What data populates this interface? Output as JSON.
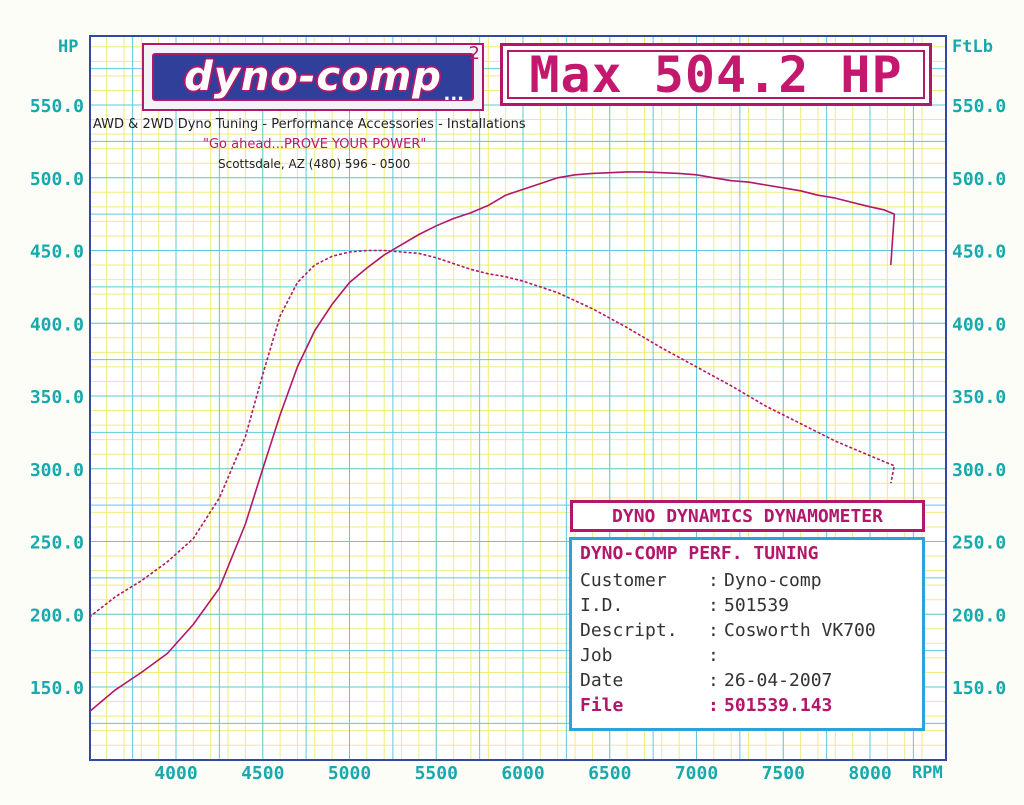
{
  "header": {
    "logo_text": "dyno-comp",
    "logo_superscript": "2",
    "logo_dots": "...",
    "max_label": "Max 504.2 HP",
    "tagline": "AWD & 2WD Dyno Tuning - Performance Accessories - Installations",
    "slogan": "\"Go ahead...PROVE YOUR POWER\"",
    "address": "Scottsdale, AZ (480) 596 - 0500"
  },
  "axes": {
    "left_unit": "HP",
    "right_unit": "FtLb",
    "x_unit": "RPM"
  },
  "colors": {
    "grid_cyan": "#5fc9d6",
    "grid_yellow": "#f2ec7e",
    "curve": "#b3176a",
    "axis_text": "#17a9ad",
    "frame": "#2f4aa0",
    "info_border": "#2aa3dd"
  },
  "dyno_header": "DYNO DYNAMICS DYNAMOMETER",
  "info": {
    "title": "DYNO-COMP PERF. TUNING",
    "rows": [
      {
        "key": "Customer",
        "sep": ":",
        "value": "Dyno-comp"
      },
      {
        "key": "I.D.",
        "sep": ":",
        "value": "501539"
      },
      {
        "key": "Descript.",
        "sep": ":",
        "value": "Cosworth VK700"
      },
      {
        "key": "Job",
        "sep": ":",
        "value": ""
      },
      {
        "key": "Date",
        "sep": ":",
        "value": "26-04-2007"
      }
    ],
    "file": {
      "key": "File",
      "sep": ":",
      "value": "501539.143"
    }
  },
  "chart_data": {
    "type": "line",
    "xlabel": "RPM",
    "ylabel_left": "HP",
    "ylabel_right": "FtLb",
    "xlim": [
      3500,
      8300
    ],
    "ylim": [
      100,
      595
    ],
    "x_ticks": [
      4000,
      4500,
      5000,
      5500,
      6000,
      6500,
      7000,
      7500,
      8000
    ],
    "y_ticks": [
      150.0,
      200.0,
      250.0,
      300.0,
      350.0,
      400.0,
      450.0,
      500.0,
      550.0
    ],
    "y_tick_labels": [
      "150.0",
      "200.0",
      "250.0",
      "300.0",
      "350.0",
      "400.0",
      "450.0",
      "500.0",
      "550.0"
    ],
    "grid": true,
    "series": [
      {
        "style": "solid",
        "x": [
          3500,
          3650,
          3800,
          3950,
          4100,
          4250,
          4400,
          4500,
          4600,
          4700,
          4800,
          4900,
          5000,
          5100,
          5200,
          5300,
          5400,
          5500,
          5600,
          5700,
          5800,
          5900,
          6000,
          6100,
          6200,
          6300,
          6400,
          6500,
          6600,
          6700,
          6800,
          6900,
          7000,
          7100,
          7200,
          7300,
          7400,
          7500,
          7600,
          7700,
          7800,
          7900,
          8000,
          8080,
          8140,
          8120
        ],
        "y": [
          133,
          148,
          160,
          173,
          193,
          218,
          262,
          300,
          337,
          370,
          395,
          413,
          428,
          438,
          447,
          454,
          461,
          467,
          472,
          476,
          481,
          488,
          492,
          496,
          500,
          502,
          503,
          503.5,
          504,
          504,
          503.5,
          503,
          502,
          500,
          498,
          497,
          495,
          493,
          491,
          488,
          486,
          483,
          480,
          478,
          475,
          440
        ]
      },
      {
        "style": "dashed",
        "x": [
          3500,
          3650,
          3800,
          3950,
          4100,
          4250,
          4400,
          4500,
          4600,
          4700,
          4800,
          4900,
          5000,
          5100,
          5200,
          5300,
          5400,
          5500,
          5600,
          5700,
          5800,
          5900,
          6000,
          6200,
          6400,
          6600,
          6800,
          7000,
          7200,
          7400,
          7600,
          7800,
          8000,
          8100,
          8140,
          8120
        ],
        "y": [
          198,
          212,
          223,
          236,
          252,
          280,
          322,
          365,
          405,
          428,
          440,
          446,
          449,
          450,
          450,
          449,
          448,
          445,
          441,
          437,
          434,
          432,
          429,
          421,
          410,
          397,
          383,
          370,
          357,
          343,
          331,
          319,
          309,
          304,
          302,
          290
        ]
      }
    ]
  }
}
